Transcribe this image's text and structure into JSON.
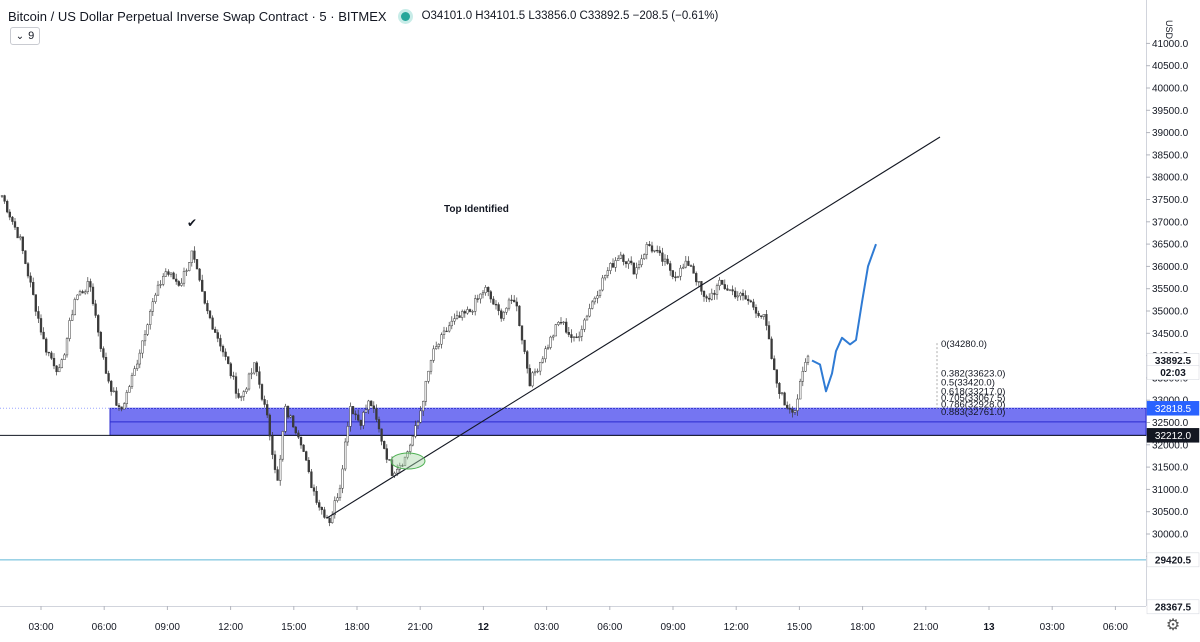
{
  "header": {
    "symbol_title": "Bitcoin / US Dollar Perpetual Inverse Swap Contract · 5 · BITMEX",
    "ohlc": "O34101.0  H34101.5  L33856.0  C33892.5  −208.5 (−0.61%)",
    "status_color": "#26a69a"
  },
  "indicator_badge": {
    "label": "9",
    "icon": "chevron-down-icon"
  },
  "settings_icon": "gear-icon",
  "chart_data": {
    "type": "candlestick",
    "currency_label": "USD",
    "y_range": [
      28200,
      41200
    ],
    "y_ticks": [
      "41000.0",
      "40500.0",
      "40000.0",
      "39500.0",
      "39000.0",
      "38500.0",
      "38000.0",
      "37500.0",
      "37000.0",
      "36500.0",
      "36000.0",
      "35500.0",
      "35000.0",
      "34500.0",
      "34000.0",
      "33500.0",
      "33000.0",
      "32500.0",
      "32000.0",
      "31500.0",
      "31000.0",
      "30500.0",
      "30000.0",
      "29500.0"
    ],
    "x_ticks": [
      "03:00",
      "06:00",
      "09:00",
      "12:00",
      "15:00",
      "18:00",
      "21:00",
      "12",
      "03:00",
      "06:00",
      "09:00",
      "12:00",
      "15:00",
      "18:00",
      "21:00",
      "13",
      "03:00",
      "06:00"
    ],
    "price_tags": [
      {
        "label": "32818.5",
        "value": 32818.5,
        "bg": "#2962ff",
        "fg": "#ffffff"
      },
      {
        "label": "32212.0",
        "value": 32212.0,
        "bg": "#131722",
        "fg": "#ffffff"
      },
      {
        "label": "33892.5",
        "value": 33892.5,
        "bg": "#ffffff",
        "fg": "#131722"
      },
      {
        "label": "02:03",
        "value": 33620,
        "bg": "#ffffff",
        "fg": "#131722"
      },
      {
        "label": "29420.5",
        "value": 29420.5,
        "bg": "#ffffff",
        "fg": "#131722"
      },
      {
        "label": "28367.5",
        "value": 28367.5,
        "bg": "#ffffff",
        "fg": "#131722"
      }
    ],
    "annotations": {
      "text": "Top Identified",
      "checkmark": "✔",
      "zone": {
        "from": 32212,
        "to": 32818.5,
        "color": "#5d5df0"
      },
      "support_line": 29420.5,
      "horizontal_line": 32212.0,
      "fib_levels": [
        {
          "label": "0(34280.0)",
          "value": 34280.0
        },
        {
          "label": "0.382(33623.0)",
          "value": 33623.0
        },
        {
          "label": "0.5(33420.0)",
          "value": 33420.0
        },
        {
          "label": "0.618(33217.0)",
          "value": 33217.0
        },
        {
          "label": "0.705(33067.5)",
          "value": 33067.5
        },
        {
          "label": "0.786(32928.0)",
          "value": 32928.0
        },
        {
          "label": "0.883(32761.0)",
          "value": 32761.0
        }
      ]
    },
    "anchor_closes": [
      [
        0,
        37700
      ],
      [
        20,
        36600
      ],
      [
        45,
        34200
      ],
      [
        60,
        33600
      ],
      [
        75,
        35300
      ],
      [
        90,
        35600
      ],
      [
        105,
        33700
      ],
      [
        120,
        32700
      ],
      [
        135,
        33700
      ],
      [
        150,
        35000
      ],
      [
        165,
        35900
      ],
      [
        180,
        35600
      ],
      [
        192,
        36300
      ],
      [
        205,
        35100
      ],
      [
        220,
        34300
      ],
      [
        240,
        33000
      ],
      [
        255,
        33800
      ],
      [
        268,
        32500
      ],
      [
        278,
        31100
      ],
      [
        285,
        32800
      ],
      [
        300,
        32200
      ],
      [
        310,
        31200
      ],
      [
        320,
        30600
      ],
      [
        330,
        30300
      ],
      [
        340,
        31100
      ],
      [
        350,
        32900
      ],
      [
        360,
        32500
      ],
      [
        370,
        33000
      ],
      [
        382,
        32100
      ],
      [
        392,
        31400
      ],
      [
        405,
        31700
      ],
      [
        418,
        32500
      ],
      [
        432,
        34000
      ],
      [
        450,
        34700
      ],
      [
        470,
        35000
      ],
      [
        485,
        35500
      ],
      [
        500,
        34900
      ],
      [
        515,
        35300
      ],
      [
        530,
        33400
      ],
      [
        545,
        34100
      ],
      [
        560,
        34800
      ],
      [
        575,
        34300
      ],
      [
        590,
        35100
      ],
      [
        605,
        35800
      ],
      [
        620,
        36300
      ],
      [
        635,
        35900
      ],
      [
        648,
        36500
      ],
      [
        660,
        36200
      ],
      [
        675,
        35800
      ],
      [
        690,
        36100
      ],
      [
        705,
        35200
      ],
      [
        720,
        35600
      ],
      [
        735,
        35400
      ],
      [
        750,
        35200
      ],
      [
        765,
        34800
      ],
      [
        775,
        33500
      ],
      [
        785,
        32900
      ],
      [
        795,
        32800
      ],
      [
        805,
        33800
      ],
      [
        810,
        34100
      ]
    ],
    "projection": [
      [
        812,
        33890
      ],
      [
        820,
        33800
      ],
      [
        826,
        33200
      ],
      [
        832,
        33600
      ],
      [
        836,
        34100
      ],
      [
        842,
        34400
      ],
      [
        850,
        34250
      ],
      [
        856,
        34350
      ],
      [
        862,
        35200
      ],
      [
        868,
        36000
      ],
      [
        876,
        36500
      ]
    ]
  }
}
